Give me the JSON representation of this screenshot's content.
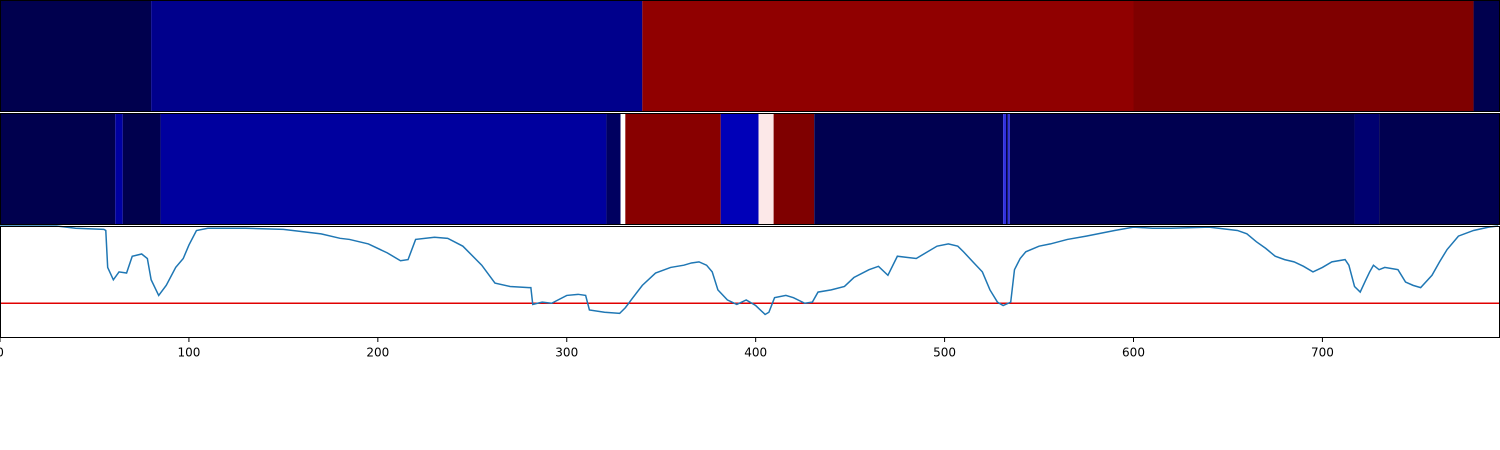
{
  "chart_data": [
    {
      "type": "strip",
      "xlim": [
        0,
        794
      ],
      "bins": [
        0,
        80,
        340,
        600,
        780,
        794
      ],
      "colors": [
        "#00004e",
        "#00008c",
        "#900000",
        "#7f0000",
        "#00004e"
      ]
    },
    {
      "type": "strip",
      "xlim": [
        0,
        794
      ],
      "bins": [
        0,
        61,
        65,
        85,
        321,
        328.5,
        331,
        381.5,
        401.5,
        409.5,
        431,
        531,
        532.5,
        533.5,
        534.5,
        717,
        730,
        794
      ],
      "colors": [
        "#00004e",
        "#0000a0",
        "#00004e",
        "#00009e",
        "#000060",
        "#ffffff",
        "#880000",
        "#0000b8",
        "#fce8e8",
        "#7f0000",
        "#000050",
        "#3030e0",
        "#000050",
        "#3030e0",
        "#000050",
        "#000070",
        "#000050"
      ]
    },
    {
      "type": "line",
      "xlim": [
        0,
        794
      ],
      "ylim": [
        0,
        1
      ],
      "xticks": [
        0,
        100,
        200,
        300,
        400,
        500,
        600,
        700
      ],
      "color": "#1f77b4",
      "threshold": 0.31,
      "threshold_color": "#e00000",
      "x": [
        0,
        30,
        40,
        55,
        56,
        57,
        60,
        63,
        67,
        70,
        75,
        78,
        80,
        84,
        88,
        93,
        97,
        100,
        104,
        110,
        130,
        150,
        160,
        170,
        180,
        185,
        195,
        205,
        212,
        216,
        220,
        230,
        237,
        245,
        255,
        262,
        270,
        280,
        281,
        282,
        287,
        292,
        300,
        306,
        310,
        312,
        320,
        328,
        331,
        335,
        340,
        347,
        355,
        362,
        366,
        370,
        374,
        377,
        380,
        385,
        390,
        395,
        400,
        405,
        407,
        410,
        416,
        420,
        426,
        430,
        433,
        440,
        447,
        452,
        460,
        465,
        470,
        475,
        480,
        485,
        490,
        496,
        502,
        507,
        510,
        515,
        520,
        524,
        528,
        531,
        535,
        537,
        540,
        543,
        550,
        556,
        565,
        575,
        590,
        600,
        610,
        620,
        640,
        655,
        660,
        665,
        670,
        675,
        680,
        685,
        690,
        695,
        700,
        705,
        712,
        714,
        717,
        720,
        723,
        725,
        727,
        730,
        733,
        740,
        744,
        748,
        752,
        758,
        762,
        766,
        772,
        780,
        788,
        793
      ],
      "values": [
        1.0,
        1.0,
        0.98,
        0.97,
        0.96,
        0.63,
        0.52,
        0.59,
        0.58,
        0.73,
        0.75,
        0.71,
        0.52,
        0.38,
        0.47,
        0.63,
        0.71,
        0.83,
        0.96,
        0.98,
        0.98,
        0.97,
        0.95,
        0.93,
        0.89,
        0.88,
        0.84,
        0.76,
        0.69,
        0.7,
        0.88,
        0.9,
        0.89,
        0.82,
        0.65,
        0.49,
        0.46,
        0.45,
        0.45,
        0.3,
        0.32,
        0.31,
        0.38,
        0.39,
        0.38,
        0.25,
        0.23,
        0.22,
        0.27,
        0.36,
        0.47,
        0.58,
        0.63,
        0.65,
        0.67,
        0.68,
        0.65,
        0.59,
        0.43,
        0.34,
        0.3,
        0.34,
        0.29,
        0.21,
        0.23,
        0.36,
        0.38,
        0.36,
        0.31,
        0.32,
        0.41,
        0.43,
        0.46,
        0.54,
        0.61,
        0.64,
        0.56,
        0.73,
        0.72,
        0.71,
        0.76,
        0.82,
        0.84,
        0.82,
        0.77,
        0.68,
        0.59,
        0.43,
        0.32,
        0.29,
        0.32,
        0.61,
        0.71,
        0.77,
        0.82,
        0.84,
        0.88,
        0.91,
        0.96,
        0.99,
        0.98,
        0.98,
        0.99,
        0.96,
        0.93,
        0.86,
        0.8,
        0.73,
        0.7,
        0.68,
        0.64,
        0.59,
        0.63,
        0.68,
        0.7,
        0.65,
        0.46,
        0.41,
        0.52,
        0.59,
        0.65,
        0.61,
        0.63,
        0.61,
        0.5,
        0.47,
        0.45,
        0.56,
        0.68,
        0.79,
        0.91,
        0.96,
        0.99,
        1.0
      ]
    }
  ]
}
